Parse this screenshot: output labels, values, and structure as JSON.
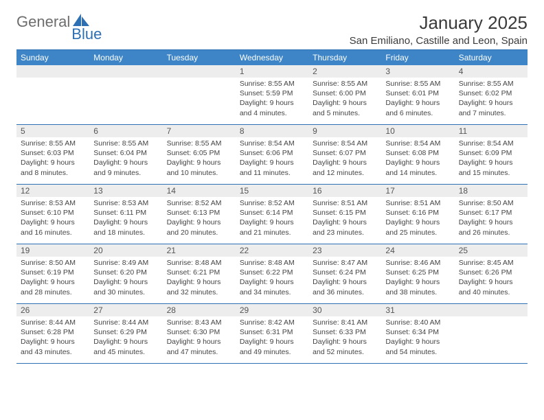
{
  "brand": {
    "first": "General",
    "second": "Blue"
  },
  "title": "January 2025",
  "location": "San Emiliano, Castille and Leon, Spain",
  "colors": {
    "header_bg": "#3d85c6",
    "rule": "#2c6fb3",
    "daynum_bg": "#ededed",
    "text": "#444444",
    "logo_gray": "#6d6d6d",
    "logo_blue": "#2c6fb3"
  },
  "weekdays": [
    "Sunday",
    "Monday",
    "Tuesday",
    "Wednesday",
    "Thursday",
    "Friday",
    "Saturday"
  ],
  "weeks": [
    [
      {
        "n": "",
        "sunrise": "",
        "sunset": "",
        "daylight": ""
      },
      {
        "n": "",
        "sunrise": "",
        "sunset": "",
        "daylight": ""
      },
      {
        "n": "",
        "sunrise": "",
        "sunset": "",
        "daylight": ""
      },
      {
        "n": "1",
        "sunrise": "Sunrise: 8:55 AM",
        "sunset": "Sunset: 5:59 PM",
        "daylight": "Daylight: 9 hours and 4 minutes."
      },
      {
        "n": "2",
        "sunrise": "Sunrise: 8:55 AM",
        "sunset": "Sunset: 6:00 PM",
        "daylight": "Daylight: 9 hours and 5 minutes."
      },
      {
        "n": "3",
        "sunrise": "Sunrise: 8:55 AM",
        "sunset": "Sunset: 6:01 PM",
        "daylight": "Daylight: 9 hours and 6 minutes."
      },
      {
        "n": "4",
        "sunrise": "Sunrise: 8:55 AM",
        "sunset": "Sunset: 6:02 PM",
        "daylight": "Daylight: 9 hours and 7 minutes."
      }
    ],
    [
      {
        "n": "5",
        "sunrise": "Sunrise: 8:55 AM",
        "sunset": "Sunset: 6:03 PM",
        "daylight": "Daylight: 9 hours and 8 minutes."
      },
      {
        "n": "6",
        "sunrise": "Sunrise: 8:55 AM",
        "sunset": "Sunset: 6:04 PM",
        "daylight": "Daylight: 9 hours and 9 minutes."
      },
      {
        "n": "7",
        "sunrise": "Sunrise: 8:55 AM",
        "sunset": "Sunset: 6:05 PM",
        "daylight": "Daylight: 9 hours and 10 minutes."
      },
      {
        "n": "8",
        "sunrise": "Sunrise: 8:54 AM",
        "sunset": "Sunset: 6:06 PM",
        "daylight": "Daylight: 9 hours and 11 minutes."
      },
      {
        "n": "9",
        "sunrise": "Sunrise: 8:54 AM",
        "sunset": "Sunset: 6:07 PM",
        "daylight": "Daylight: 9 hours and 12 minutes."
      },
      {
        "n": "10",
        "sunrise": "Sunrise: 8:54 AM",
        "sunset": "Sunset: 6:08 PM",
        "daylight": "Daylight: 9 hours and 14 minutes."
      },
      {
        "n": "11",
        "sunrise": "Sunrise: 8:54 AM",
        "sunset": "Sunset: 6:09 PM",
        "daylight": "Daylight: 9 hours and 15 minutes."
      }
    ],
    [
      {
        "n": "12",
        "sunrise": "Sunrise: 8:53 AM",
        "sunset": "Sunset: 6:10 PM",
        "daylight": "Daylight: 9 hours and 16 minutes."
      },
      {
        "n": "13",
        "sunrise": "Sunrise: 8:53 AM",
        "sunset": "Sunset: 6:11 PM",
        "daylight": "Daylight: 9 hours and 18 minutes."
      },
      {
        "n": "14",
        "sunrise": "Sunrise: 8:52 AM",
        "sunset": "Sunset: 6:13 PM",
        "daylight": "Daylight: 9 hours and 20 minutes."
      },
      {
        "n": "15",
        "sunrise": "Sunrise: 8:52 AM",
        "sunset": "Sunset: 6:14 PM",
        "daylight": "Daylight: 9 hours and 21 minutes."
      },
      {
        "n": "16",
        "sunrise": "Sunrise: 8:51 AM",
        "sunset": "Sunset: 6:15 PM",
        "daylight": "Daylight: 9 hours and 23 minutes."
      },
      {
        "n": "17",
        "sunrise": "Sunrise: 8:51 AM",
        "sunset": "Sunset: 6:16 PM",
        "daylight": "Daylight: 9 hours and 25 minutes."
      },
      {
        "n": "18",
        "sunrise": "Sunrise: 8:50 AM",
        "sunset": "Sunset: 6:17 PM",
        "daylight": "Daylight: 9 hours and 26 minutes."
      }
    ],
    [
      {
        "n": "19",
        "sunrise": "Sunrise: 8:50 AM",
        "sunset": "Sunset: 6:19 PM",
        "daylight": "Daylight: 9 hours and 28 minutes."
      },
      {
        "n": "20",
        "sunrise": "Sunrise: 8:49 AM",
        "sunset": "Sunset: 6:20 PM",
        "daylight": "Daylight: 9 hours and 30 minutes."
      },
      {
        "n": "21",
        "sunrise": "Sunrise: 8:48 AM",
        "sunset": "Sunset: 6:21 PM",
        "daylight": "Daylight: 9 hours and 32 minutes."
      },
      {
        "n": "22",
        "sunrise": "Sunrise: 8:48 AM",
        "sunset": "Sunset: 6:22 PM",
        "daylight": "Daylight: 9 hours and 34 minutes."
      },
      {
        "n": "23",
        "sunrise": "Sunrise: 8:47 AM",
        "sunset": "Sunset: 6:24 PM",
        "daylight": "Daylight: 9 hours and 36 minutes."
      },
      {
        "n": "24",
        "sunrise": "Sunrise: 8:46 AM",
        "sunset": "Sunset: 6:25 PM",
        "daylight": "Daylight: 9 hours and 38 minutes."
      },
      {
        "n": "25",
        "sunrise": "Sunrise: 8:45 AM",
        "sunset": "Sunset: 6:26 PM",
        "daylight": "Daylight: 9 hours and 40 minutes."
      }
    ],
    [
      {
        "n": "26",
        "sunrise": "Sunrise: 8:44 AM",
        "sunset": "Sunset: 6:28 PM",
        "daylight": "Daylight: 9 hours and 43 minutes."
      },
      {
        "n": "27",
        "sunrise": "Sunrise: 8:44 AM",
        "sunset": "Sunset: 6:29 PM",
        "daylight": "Daylight: 9 hours and 45 minutes."
      },
      {
        "n": "28",
        "sunrise": "Sunrise: 8:43 AM",
        "sunset": "Sunset: 6:30 PM",
        "daylight": "Daylight: 9 hours and 47 minutes."
      },
      {
        "n": "29",
        "sunrise": "Sunrise: 8:42 AM",
        "sunset": "Sunset: 6:31 PM",
        "daylight": "Daylight: 9 hours and 49 minutes."
      },
      {
        "n": "30",
        "sunrise": "Sunrise: 8:41 AM",
        "sunset": "Sunset: 6:33 PM",
        "daylight": "Daylight: 9 hours and 52 minutes."
      },
      {
        "n": "31",
        "sunrise": "Sunrise: 8:40 AM",
        "sunset": "Sunset: 6:34 PM",
        "daylight": "Daylight: 9 hours and 54 minutes."
      },
      {
        "n": "",
        "sunrise": "",
        "sunset": "",
        "daylight": ""
      }
    ]
  ]
}
